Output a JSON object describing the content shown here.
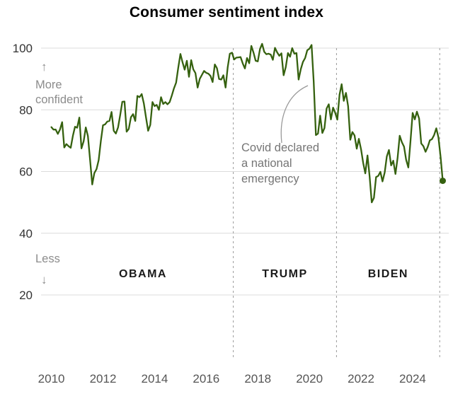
{
  "chart_data": {
    "type": "line",
    "title": "Consumer sentiment index",
    "xlabel": "",
    "ylabel": "",
    "xlim": [
      2009.6,
      2025.4
    ],
    "ylim": [
      20,
      100
    ],
    "yticks": [
      20,
      40,
      60,
      80,
      100
    ],
    "xticks": [
      2010,
      2012,
      2014,
      2016,
      2018,
      2020,
      2022,
      2024
    ],
    "grid": true,
    "legend": false,
    "line_color": "#35610f",
    "grid_color": "#dcdcdc",
    "divider_color": "#9a9a9a",
    "annotation_color": "#757575",
    "x_start": 2010.0,
    "x_step_years": 0.0833333,
    "series": [
      {
        "name": "Consumer sentiment index",
        "color": "#35610f",
        "values": [
          74.4,
          73.6,
          73.6,
          72.2,
          73.6,
          76.0,
          67.8,
          68.9,
          68.2,
          67.7,
          71.6,
          74.5,
          74.2,
          77.5,
          67.5,
          69.8,
          74.3,
          71.5,
          63.7,
          55.8,
          59.5,
          60.8,
          63.7,
          69.9,
          75.0,
          75.3,
          76.2,
          76.4,
          79.3,
          73.2,
          72.3,
          74.3,
          78.3,
          82.6,
          82.7,
          72.9,
          73.8,
          77.6,
          78.6,
          76.4,
          84.5,
          84.1,
          85.1,
          82.1,
          77.5,
          73.2,
          75.1,
          82.5,
          81.2,
          81.6,
          80.0,
          84.1,
          81.9,
          82.5,
          81.8,
          82.5,
          84.6,
          86.9,
          88.8,
          93.6,
          98.1,
          95.4,
          93.0,
          95.9,
          90.7,
          96.1,
          93.1,
          91.9,
          87.2,
          90.0,
          91.3,
          92.6,
          92.0,
          91.7,
          91.0,
          89.0,
          94.7,
          93.5,
          90.0,
          89.8,
          91.2,
          87.2,
          93.8,
          98.2,
          98.5,
          96.3,
          96.9,
          97.0,
          97.1,
          95.0,
          93.4,
          96.8,
          95.1,
          100.7,
          98.5,
          95.9,
          95.7,
          99.7,
          101.4,
          98.8,
          98.0,
          98.2,
          97.9,
          96.2,
          100.1,
          98.6,
          97.5,
          98.3,
          91.2,
          93.8,
          98.4,
          97.2,
          100.0,
          98.2,
          98.4,
          89.8,
          93.2,
          95.5,
          96.8,
          99.3,
          99.8,
          101.0,
          89.1,
          71.8,
          72.3,
          78.1,
          72.5,
          74.1,
          80.4,
          81.8,
          76.9,
          80.7,
          79.0,
          76.8,
          84.9,
          88.3,
          82.9,
          85.5,
          81.2,
          70.3,
          72.8,
          71.7,
          67.4,
          70.6,
          67.2,
          62.8,
          59.4,
          65.2,
          58.4,
          50.0,
          51.5,
          58.2,
          58.6,
          59.9,
          56.8,
          59.7,
          64.9,
          67.0,
          62.0,
          63.5,
          59.2,
          64.4,
          71.6,
          69.5,
          68.1,
          63.8,
          61.3,
          69.7,
          79.0,
          76.9,
          79.4,
          77.2,
          69.1,
          68.2,
          66.4,
          67.9,
          70.1,
          70.5,
          71.8,
          74.0,
          71.1,
          64.7,
          57.0
        ]
      }
    ],
    "dividers": [
      2017.05,
      2021.05,
      2025.05
    ],
    "era_labels": [
      {
        "label": "OBAMA",
        "x": 2013.55
      },
      {
        "label": "TRUMP",
        "x": 2019.05
      },
      {
        "label": "BIDEN",
        "x": 2023.05
      }
    ],
    "annotation": {
      "lines": [
        "Covid declared",
        "a national",
        "emergency"
      ],
      "points_to_x": 2020.2,
      "points_to_y": 88
    },
    "direction_labels": {
      "more": {
        "arrow": "↑",
        "lines": [
          "More",
          "confident"
        ]
      },
      "less": {
        "arrow": "↓",
        "lines": [
          "Less"
        ]
      }
    }
  }
}
